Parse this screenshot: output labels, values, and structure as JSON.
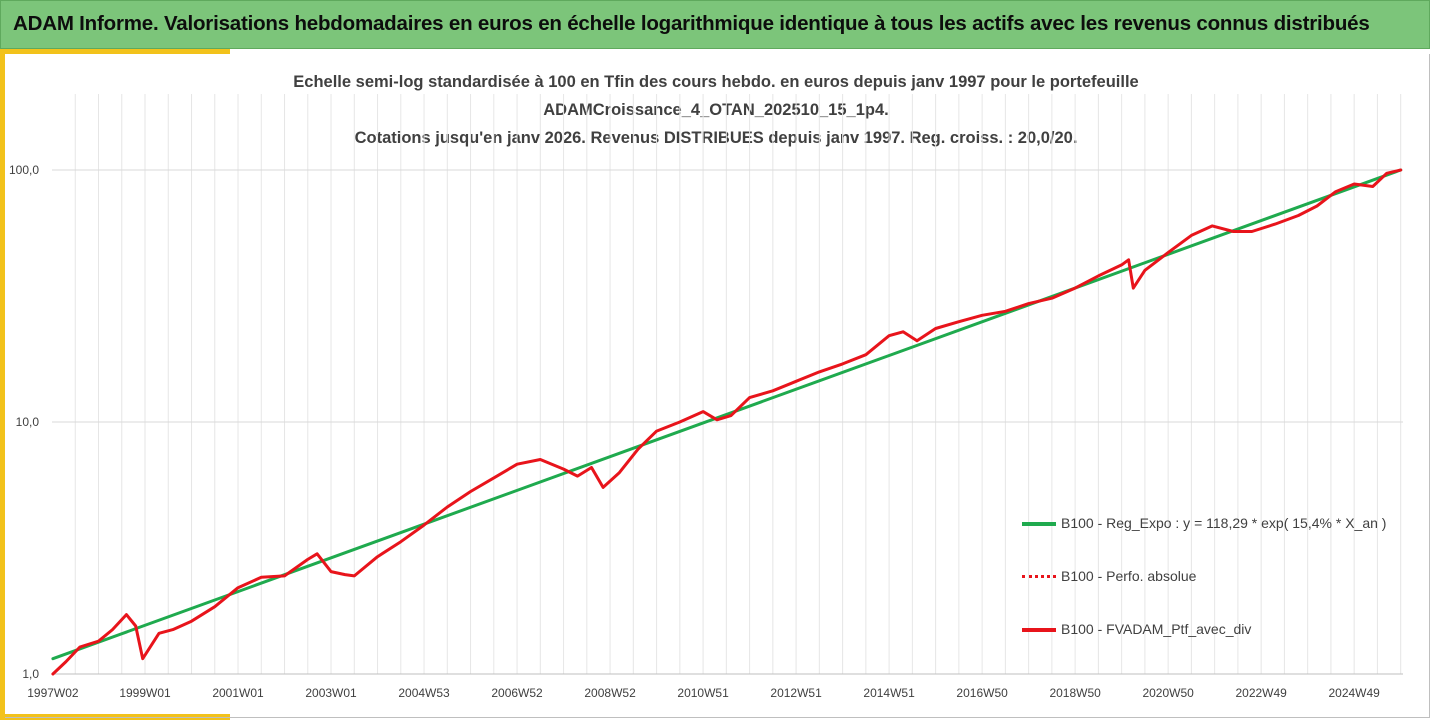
{
  "header": {
    "title": "ADAM Informe. Valorisations hebdomadaires en euros en échelle logarithmique identique à tous les actifs avec les revenus connus distribués"
  },
  "chart_data": {
    "type": "line",
    "title_lines": [
      "Echelle semi-log standardisée à 100 en Tfin des cours hebdo.  en euros depuis janv 1997 pour le portefeuille",
      "ADAMCroissance_4_OTAN_202510_15_1p4.",
      "Cotations  jusqu'en janv 2026. Revenus DISTRIBUES depuis janv 1997. Reg. croiss. : 20,0/20."
    ],
    "y_scale": "log",
    "ylim": [
      1,
      100
    ],
    "y_ticks": [
      {
        "value": 100,
        "label": "100,0"
      },
      {
        "value": 10,
        "label": "10,0"
      },
      {
        "value": 1,
        "label": "1,0"
      }
    ],
    "xlim": [
      1997.0,
      2026.05
    ],
    "x_ticks": [
      {
        "value": 1997.02,
        "label": "1997W02"
      },
      {
        "value": 1999.0,
        "label": "1999W01"
      },
      {
        "value": 2001.0,
        "label": "2001W01"
      },
      {
        "value": 2003.0,
        "label": "2003W01"
      },
      {
        "value": 2005.0,
        "label": "2004W53"
      },
      {
        "value": 2007.0,
        "label": "2006W52"
      },
      {
        "value": 2009.0,
        "label": "2008W52"
      },
      {
        "value": 2011.0,
        "label": "2010W51"
      },
      {
        "value": 2013.0,
        "label": "2012W51"
      },
      {
        "value": 2015.0,
        "label": "2014W51"
      },
      {
        "value": 2017.0,
        "label": "2016W50"
      },
      {
        "value": 2019.0,
        "label": "2018W50"
      },
      {
        "value": 2021.0,
        "label": "2020W50"
      },
      {
        "value": 2023.0,
        "label": "2022W49"
      },
      {
        "value": 2025.0,
        "label": "2024W49"
      }
    ],
    "grid": {
      "vertical": true,
      "horizontal": true
    },
    "legend_position": "bottom-right",
    "series": [
      {
        "name": "B100 - Reg_Expo : y = 118,29 * exp( 15,4% *  X_an )",
        "color": "#1faa4e",
        "style": "solid",
        "x": [
          1997.02,
          2026.0
        ],
        "y": [
          1.15,
          100.0
        ]
      },
      {
        "name": "B100 - Perfo. absolue",
        "color": "#e8141b",
        "style": "dotted",
        "x": [
          1997.02,
          1997.3,
          1997.6,
          1998.0,
          1998.3,
          1998.6,
          1998.8,
          1998.95,
          1999.3,
          1999.6,
          2000.0,
          2000.5,
          2001.0,
          2001.5,
          2002.0,
          2002.5,
          2002.7,
          2003.0,
          2003.3,
          2003.5,
          2004.0,
          2004.5,
          2005.0,
          2005.5,
          2006.0,
          2006.5,
          2007.0,
          2007.5,
          2008.0,
          2008.3,
          2008.6,
          2008.85,
          2009.2,
          2009.6,
          2010.0,
          2010.5,
          2011.0,
          2011.3,
          2011.6,
          2012.0,
          2012.5,
          2013.0,
          2013.5,
          2014.0,
          2014.5,
          2015.0,
          2015.3,
          2015.6,
          2016.0,
          2016.5,
          2017.0,
          2017.5,
          2018.0,
          2018.5,
          2019.0,
          2019.5,
          2020.0,
          2020.15,
          2020.25,
          2020.5,
          2021.0,
          2021.5,
          2021.95,
          2022.4,
          2022.8,
          2023.3,
          2023.8,
          2024.2,
          2024.6,
          2025.0,
          2025.4,
          2025.7,
          2026.0
        ],
        "y": [
          1.0,
          1.12,
          1.28,
          1.35,
          1.5,
          1.72,
          1.55,
          1.15,
          1.45,
          1.5,
          1.62,
          1.85,
          2.2,
          2.42,
          2.45,
          2.85,
          3.0,
          2.55,
          2.48,
          2.45,
          2.92,
          3.35,
          3.9,
          4.6,
          5.3,
          6.0,
          6.8,
          7.1,
          6.5,
          6.1,
          6.6,
          5.5,
          6.3,
          7.8,
          9.2,
          10.0,
          11.0,
          10.2,
          10.6,
          12.5,
          13.3,
          14.5,
          15.8,
          17.0,
          18.5,
          22.0,
          22.8,
          21.0,
          23.5,
          25.0,
          26.5,
          27.5,
          29.5,
          31.0,
          34.0,
          38.0,
          42.0,
          44.0,
          34.0,
          40.0,
          47.0,
          55.0,
          60.0,
          57.0,
          57.0,
          61.0,
          66.0,
          72.0,
          82.0,
          88.0,
          86.0,
          97.0,
          100.0
        ]
      },
      {
        "name": "B100 - FVADAM_Ptf_avec_div",
        "color": "#e8141b",
        "style": "solid",
        "x": [
          1997.02,
          1997.3,
          1997.6,
          1998.0,
          1998.3,
          1998.6,
          1998.8,
          1998.95,
          1999.3,
          1999.6,
          2000.0,
          2000.5,
          2001.0,
          2001.5,
          2002.0,
          2002.5,
          2002.7,
          2003.0,
          2003.3,
          2003.5,
          2004.0,
          2004.5,
          2005.0,
          2005.5,
          2006.0,
          2006.5,
          2007.0,
          2007.5,
          2008.0,
          2008.3,
          2008.6,
          2008.85,
          2009.2,
          2009.6,
          2010.0,
          2010.5,
          2011.0,
          2011.3,
          2011.6,
          2012.0,
          2012.5,
          2013.0,
          2013.5,
          2014.0,
          2014.5,
          2015.0,
          2015.3,
          2015.6,
          2016.0,
          2016.5,
          2017.0,
          2017.5,
          2018.0,
          2018.5,
          2019.0,
          2019.5,
          2020.0,
          2020.15,
          2020.25,
          2020.5,
          2021.0,
          2021.5,
          2021.95,
          2022.4,
          2022.8,
          2023.3,
          2023.8,
          2024.2,
          2024.6,
          2025.0,
          2025.4,
          2025.7,
          2026.0
        ],
        "y": [
          1.0,
          1.12,
          1.28,
          1.35,
          1.5,
          1.72,
          1.55,
          1.15,
          1.45,
          1.5,
          1.62,
          1.85,
          2.2,
          2.42,
          2.45,
          2.85,
          3.0,
          2.55,
          2.48,
          2.45,
          2.92,
          3.35,
          3.9,
          4.6,
          5.3,
          6.0,
          6.8,
          7.1,
          6.5,
          6.1,
          6.6,
          5.5,
          6.3,
          7.8,
          9.2,
          10.0,
          11.0,
          10.2,
          10.6,
          12.5,
          13.3,
          14.5,
          15.8,
          17.0,
          18.5,
          22.0,
          22.8,
          21.0,
          23.5,
          25.0,
          26.5,
          27.5,
          29.5,
          31.0,
          34.0,
          38.0,
          42.0,
          44.0,
          34.0,
          40.0,
          47.0,
          55.0,
          60.0,
          57.0,
          57.0,
          61.0,
          66.0,
          72.0,
          82.0,
          88.0,
          86.0,
          97.0,
          100.0
        ]
      }
    ]
  }
}
